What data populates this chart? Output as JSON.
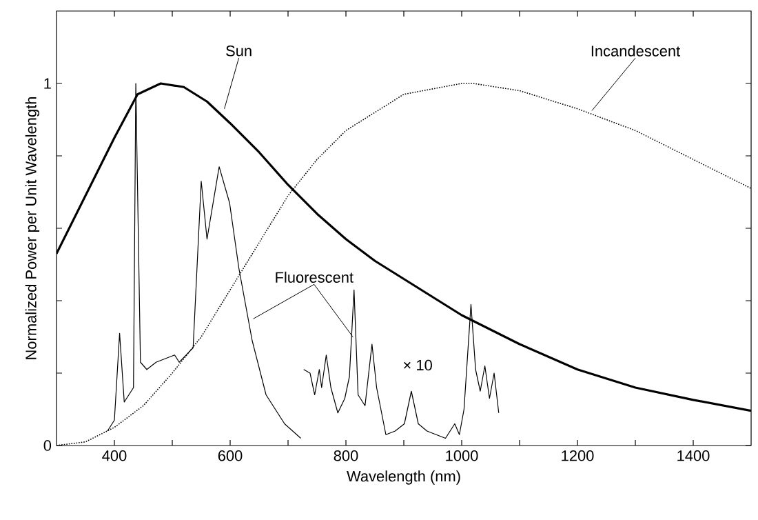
{
  "chart_data": {
    "type": "line",
    "xlabel": "Wavelength (nm)",
    "ylabel": "Normalized Power per Unit Wavelength",
    "xlim": [
      300,
      1500
    ],
    "ylim": [
      0,
      1.2
    ],
    "xticks": [
      400,
      {
        "value": 500,
        "label": null
      },
      600,
      {
        "value": 700,
        "label": null
      },
      800,
      {
        "value": 900,
        "label": null
      },
      1000,
      {
        "value": 1100,
        "label": null
      },
      1200,
      {
        "value": 1300,
        "label": null
      },
      1400
    ],
    "yticks": [
      0,
      {
        "value": 0.2,
        "label": null
      },
      {
        "value": 0.4,
        "label": null
      },
      {
        "value": 0.6,
        "label": null
      },
      {
        "value": 0.8,
        "label": null
      },
      1
    ],
    "grid": false,
    "annotations": [
      "× 10"
    ],
    "series": [
      {
        "name": "Sun",
        "color": "#000000",
        "line_style": "solid",
        "x": [
          300,
          350,
          400,
          440,
          480,
          520,
          560,
          600,
          650,
          700,
          750,
          800,
          850,
          900,
          950,
          1000,
          1100,
          1200,
          1300,
          1400,
          1500
        ],
        "values": [
          0.53,
          0.69,
          0.85,
          0.97,
          1.0,
          0.99,
          0.95,
          0.89,
          0.81,
          0.72,
          0.64,
          0.57,
          0.51,
          0.46,
          0.41,
          0.36,
          0.28,
          0.21,
          0.16,
          0.126,
          0.096
        ]
      },
      {
        "name": "Incandescent",
        "color": "#000000",
        "line_style": "dotted",
        "x": [
          300,
          350,
          400,
          450,
          500,
          550,
          600,
          650,
          700,
          750,
          800,
          900,
          1000,
          1020,
          1100,
          1200,
          1300,
          1400,
          1500
        ],
        "values": [
          0.0,
          0.01,
          0.05,
          0.11,
          0.2,
          0.3,
          0.43,
          0.56,
          0.69,
          0.79,
          0.87,
          0.97,
          1.0,
          1.0,
          0.98,
          0.93,
          0.87,
          0.79,
          0.71
        ]
      },
      {
        "name": "Fluorescent",
        "color": "#000000",
        "line_style": "solid",
        "x": [
          388,
          400,
          409,
          417,
          433,
          437,
          445,
          456,
          472,
          504,
          512,
          536,
          550,
          560,
          581,
          599,
          615,
          638,
          662,
          694,
          722,
          724,
          727,
          738,
          746,
          754,
          758,
          766,
          774,
          786,
          798,
          806,
          814,
          821,
          833,
          845,
          853,
          869,
          885,
          901,
          913,
          925,
          940,
          956,
          972,
          988,
          996,
          1004,
          1016,
          1024,
          1032,
          1040,
          1048,
          1056,
          1064
        ],
        "values": [
          0.04,
          0.07,
          0.31,
          0.12,
          0.16,
          1.0,
          0.23,
          0.21,
          0.23,
          0.25,
          0.23,
          0.27,
          0.73,
          0.57,
          0.77,
          0.67,
          0.49,
          0.29,
          0.14,
          0.06,
          0.02,
          null,
          0.21,
          0.2,
          0.14,
          0.21,
          0.16,
          0.25,
          0.16,
          0.09,
          0.13,
          0.19,
          0.43,
          0.14,
          0.11,
          0.28,
          0.16,
          0.03,
          0.04,
          0.06,
          0.15,
          0.06,
          0.04,
          0.03,
          0.02,
          0.06,
          0.03,
          0.1,
          0.39,
          0.21,
          0.15,
          0.22,
          0.13,
          0.2,
          0.09
        ]
      }
    ]
  }
}
